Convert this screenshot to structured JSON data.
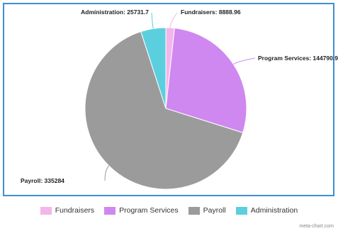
{
  "chart_data": {
    "type": "pie",
    "categories": [
      "Fundraisers",
      "Program Services",
      "Payroll",
      "Administration"
    ],
    "values": [
      8888.96,
      144790.9,
      335284,
      25731.7
    ],
    "data_labels": [
      "Fundraisers: 8888.96",
      "Program Services: 144790.9",
      "Payroll: 335284",
      "Administration: 25731.7"
    ],
    "colors": [
      "#f3b6ea",
      "#cf88ef",
      "#9b9b9b",
      "#5ccfde"
    ],
    "legend_position": "bottom"
  },
  "watermark": "meta-chart.com"
}
